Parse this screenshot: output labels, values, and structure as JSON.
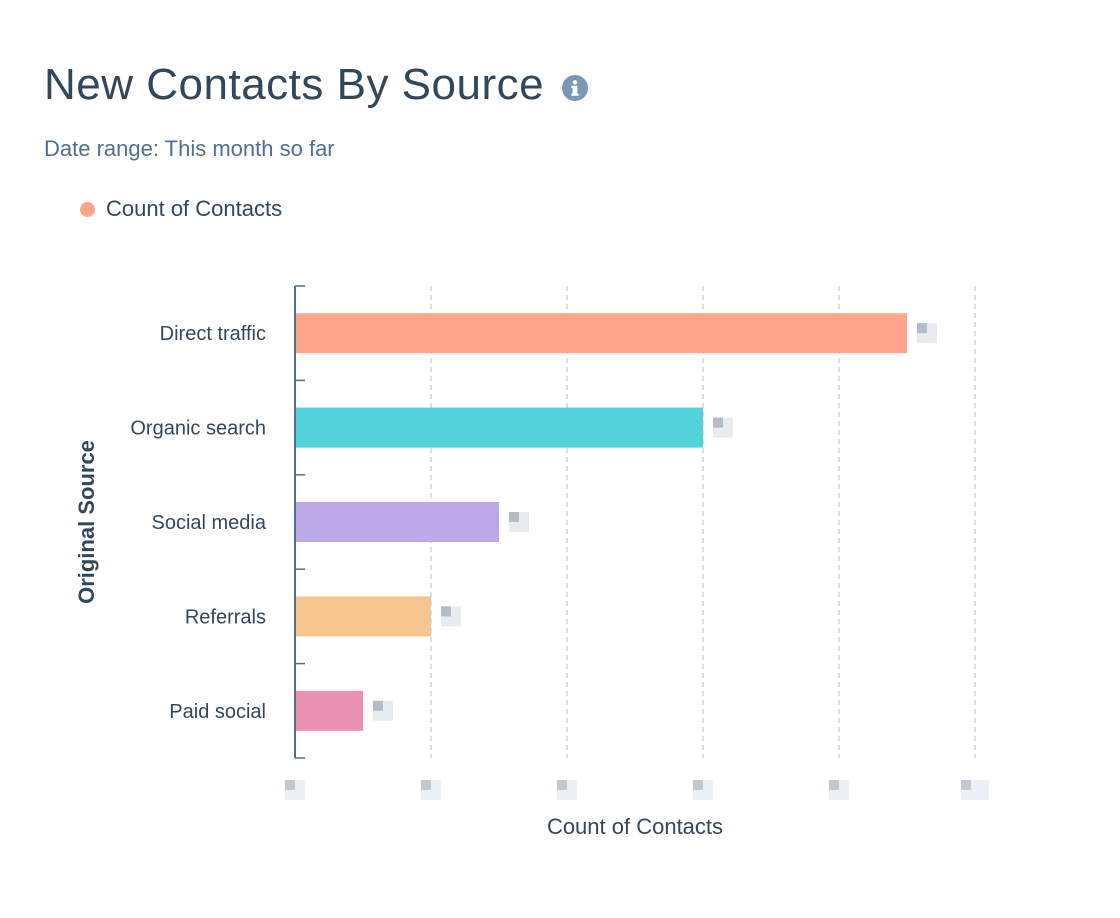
{
  "header": {
    "title": "New Contacts By Source",
    "info_icon": "info-circle-icon"
  },
  "subtitle": "Date range:  This month so far",
  "legend": {
    "label": "Count of Contacts",
    "color": "#ffa68a"
  },
  "chart_data": {
    "type": "bar",
    "orientation": "horizontal",
    "xlabel": "Count of Contacts",
    "ylabel": "Original Source",
    "categories": [
      "Direct traffic",
      "Organic search",
      "Social media",
      "Referrals",
      "Paid social"
    ],
    "series": [
      {
        "name": "Count of Contacts",
        "values": [
          4.5,
          3,
          1.5,
          1,
          0.5
        ]
      }
    ],
    "colors": [
      "#ffa68a",
      "#51d3d9",
      "#bda9ea",
      "#f5c78e",
      "#ea90b1"
    ],
    "xlim": [
      0,
      5
    ],
    "grid": true,
    "tick_labels_obscured": true,
    "value_labels_obscured": true,
    "legend_position": "top-left"
  }
}
